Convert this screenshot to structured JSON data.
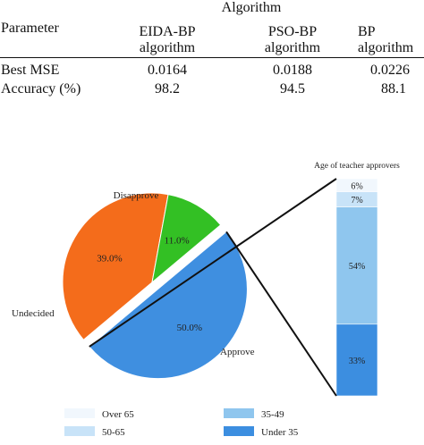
{
  "table": {
    "group_header": "Algorithm",
    "row_header": "Parameter",
    "columns": [
      {
        "line1": "EIDA-BP",
        "line2": "algorithm"
      },
      {
        "line1": "PSO-BP",
        "line2": "algorithm"
      },
      {
        "line1": "BP",
        "line2": "algorithm"
      }
    ],
    "rows": [
      {
        "label": "Best MSE",
        "values": [
          "0.0164",
          "0.0188",
          "0.0226"
        ]
      },
      {
        "label": "Accuracy (%)",
        "values": [
          "98.2",
          "94.5",
          "88.1"
        ]
      }
    ]
  },
  "chart_data": [
    {
      "type": "pie",
      "slices": [
        {
          "label": "Disapprove",
          "value": 39.0,
          "text": "39.0%",
          "color": "#f46c1b"
        },
        {
          "label": "Undecided",
          "value": 11.0,
          "text": "11.0%",
          "color": "#33c024"
        },
        {
          "label": "Approve",
          "value": 50.0,
          "text": "50.0%",
          "color": "#3f8fe0"
        }
      ]
    },
    {
      "type": "bar",
      "stacked": true,
      "title": "Age of teacher approvers",
      "segments": [
        {
          "label": "Over 65",
          "value": 6,
          "text": "6%",
          "color": "#f1f7fd"
        },
        {
          "label": "50-65",
          "value": 7,
          "text": "7%",
          "color": "#c8e3f8"
        },
        {
          "label": "35-49",
          "value": 54,
          "text": "54%",
          "color": "#8fc6ee"
        },
        {
          "label": "Under 35",
          "value": 33,
          "text": "33%",
          "color": "#3c8ee0"
        }
      ],
      "legend": [
        {
          "label": "Over 65",
          "color": "#f1f7fd"
        },
        {
          "label": "35-49",
          "color": "#8fc6ee"
        },
        {
          "label": "50-65",
          "color": "#c8e3f8"
        },
        {
          "label": "Under 35",
          "color": "#3c8ee0"
        }
      ]
    }
  ]
}
